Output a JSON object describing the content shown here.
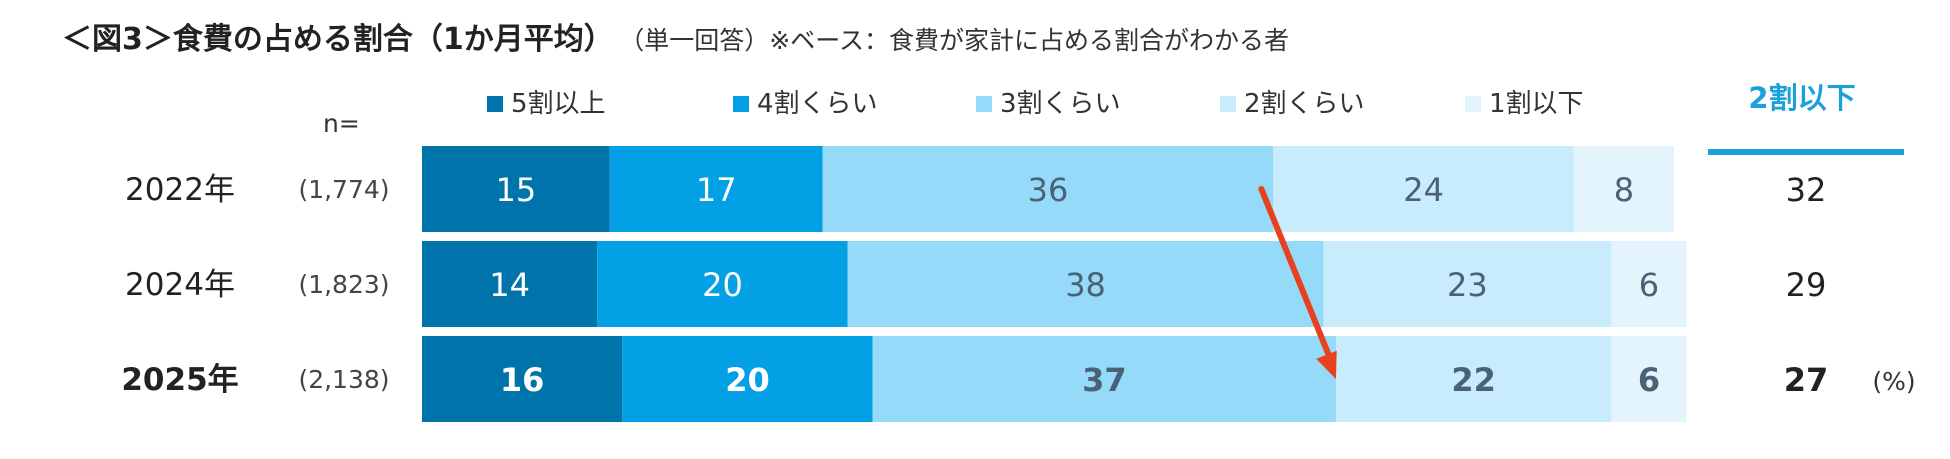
{
  "title": "＜図3＞食費の占める割合（1か月平均）",
  "subtitle": "（単一回答）※ベース：食費が家計に占める割合がわかる者",
  "chart_data": {
    "type": "bar",
    "orientation": "horizontal",
    "stacked": true,
    "percent_scale": true,
    "n_header": "n=",
    "categories": [
      "2022年",
      "2024年",
      "2025年"
    ],
    "n_values": [
      "(1,774)",
      "(1,823)",
      "(2,138)"
    ],
    "series": [
      {
        "name": "5割以上",
        "color": "#0073AA",
        "values": [
          15,
          14,
          16
        ]
      },
      {
        "name": "4割くらい",
        "color": "#03A0E6",
        "values": [
          17,
          20,
          20
        ]
      },
      {
        "name": "3割くらい",
        "color": "#95DAF9",
        "values": [
          36,
          38,
          37
        ]
      },
      {
        "name": "2割くらい",
        "color": "#C8ECFC",
        "values": [
          24,
          23,
          22
        ]
      },
      {
        "name": "1割以下",
        "color": "#E4F4FD",
        "values": [
          8,
          6,
          6
        ]
      }
    ],
    "summary": {
      "title": "2割以下",
      "values": [
        32,
        29,
        27
      ],
      "unit": "(%)",
      "color": "#1AA0DC"
    },
    "highlight_row": 2,
    "annotation": "arrow from 2022年 boundary of 3割くらい/2割くらい to 2025年 boundary",
    "legend_position": "top"
  }
}
